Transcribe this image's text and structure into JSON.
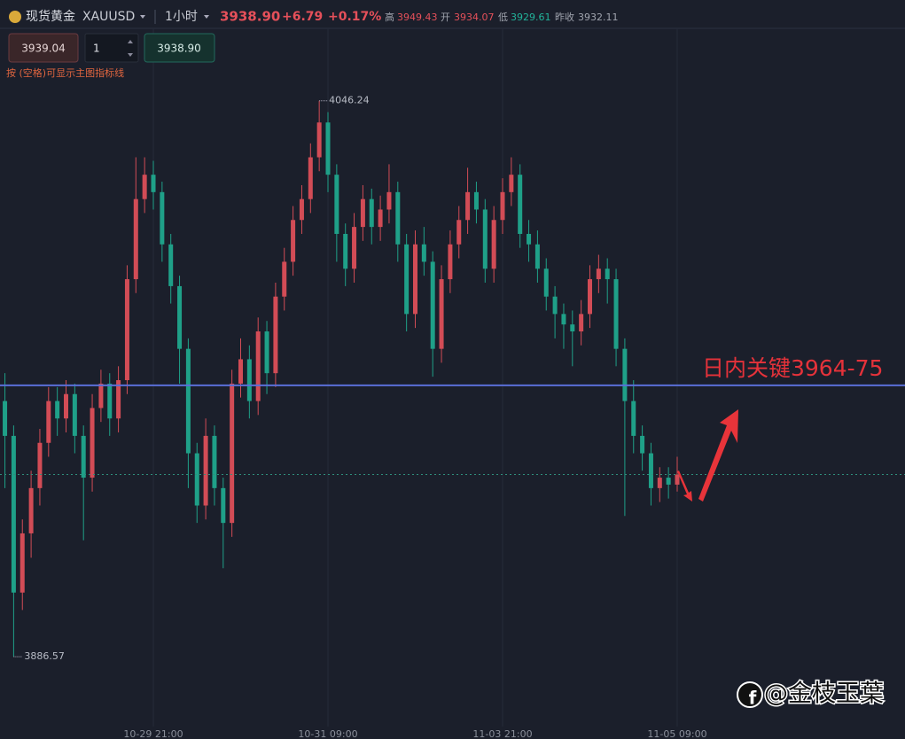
{
  "header": {
    "name": "现货黄金",
    "symbol": "XAUUSD",
    "interval": "1小时",
    "price": "3938.90",
    "change": "+6.79",
    "change_pct": "+0.17%",
    "high_label": "高",
    "high": "3949.43",
    "open_label": "开",
    "open": "3934.07",
    "low_label": "低",
    "low": "3929.61",
    "prev_close_label": "昨收",
    "prev_close": "3932.11"
  },
  "controls": {
    "sell_price": "3939.04",
    "quantity": "1",
    "buy_price": "3938.90",
    "hint": "按 (空格)可显示主图指标线"
  },
  "watermark": "@金枝玉葉",
  "chart_data": {
    "type": "candlestick",
    "up_color": "#d24c56",
    "down_color": "#1fa088",
    "ylim": [
      3866,
      4051
    ],
    "categories": [
      null,
      null,
      null,
      null,
      null,
      null,
      null,
      null,
      null,
      null,
      null,
      null,
      null,
      null,
      null,
      null,
      null,
      "10-29 21:00",
      null,
      null,
      null,
      null,
      null,
      null,
      null,
      null,
      null,
      null,
      null,
      null,
      null,
      null,
      null,
      null,
      null,
      null,
      null,
      "10-31 09:00",
      null,
      null,
      null,
      null,
      null,
      null,
      null,
      null,
      null,
      null,
      null,
      null,
      null,
      null,
      null,
      null,
      null,
      null,
      null,
      "11-03 21:00",
      null,
      null,
      null,
      null,
      null,
      null,
      null,
      null,
      null,
      null,
      null,
      null,
      null,
      null,
      null,
      null,
      null,
      null,
      null,
      "11-05 09:00"
    ],
    "open": [
      3960,
      3950,
      3905,
      3922,
      3935,
      3948,
      3960,
      3955,
      3962,
      3950,
      3938,
      3958,
      3965,
      3955,
      3966,
      3995,
      4018,
      4025,
      4020,
      4005,
      3993,
      3975,
      3945,
      3930,
      3950,
      3935,
      3925,
      3965,
      3972,
      3960,
      3980,
      3968,
      3990,
      4000,
      4012,
      4018,
      4030,
      4040,
      4025,
      4008,
      3998,
      4010,
      4018,
      4010,
      4015,
      4020,
      4005,
      3985,
      4005,
      4000,
      3975,
      3995,
      4005,
      4012,
      4020,
      4015,
      3998,
      4012,
      4020,
      4025,
      4008,
      4005,
      3998,
      3990,
      3985,
      3982,
      3980,
      3985,
      3995,
      3998,
      3995,
      3975,
      3960,
      3950,
      3945,
      3935,
      3938,
      3936
    ],
    "high": [
      3968,
      3953,
      3926,
      3940,
      3952,
      3964,
      3964,
      3966,
      3965,
      3953,
      3962,
      3969,
      3968,
      3970,
      3999,
      4030,
      4030,
      4029,
      4023,
      4008,
      3996,
      3978,
      3948,
      3955,
      3953,
      3938,
      3969,
      3978,
      3976,
      3984,
      3983,
      3994,
      4004,
      4016,
      4022,
      4034,
      4046.24,
      4043,
      4028,
      4011,
      4014,
      4022,
      4021,
      4019,
      4028,
      4023,
      4008,
      4009,
      4010,
      4003,
      3999,
      4009,
      4016,
      4027,
      4023,
      4018,
      4016,
      4024,
      4030,
      4028,
      4012,
      4009,
      4001,
      3993,
      3988,
      3986,
      3989,
      3999,
      4002,
      4001,
      3998,
      3978,
      3966,
      3953,
      3948,
      3941,
      3941,
      3944
    ],
    "low": [
      3935,
      3886.57,
      3900,
      3915,
      3930,
      3944,
      3950,
      3951,
      3945,
      3920,
      3934,
      3954,
      3950,
      3951,
      3962,
      3991,
      4014,
      4015,
      4000,
      3988,
      3965,
      3935,
      3925,
      3926,
      3930,
      3912,
      3921,
      3961,
      3955,
      3956,
      3962,
      3964,
      3986,
      3996,
      4008,
      4014,
      4026,
      4020,
      4000,
      3993,
      3994,
      4006,
      4005,
      4006,
      4011,
      4000,
      3980,
      3981,
      3996,
      3967,
      3971,
      3991,
      4001,
      4008,
      4011,
      3994,
      3994,
      4008,
      4016,
      4004,
      4000,
      3994,
      3986,
      3978,
      3975,
      3970,
      3976,
      3981,
      3991,
      3988,
      3970,
      3927,
      3945,
      3940,
      3930,
      3931,
      3932,
      3934
    ],
    "close": [
      3950,
      3905,
      3922,
      3935,
      3948,
      3960,
      3955,
      3962,
      3950,
      3938,
      3958,
      3965,
      3955,
      3966,
      3995,
      4018,
      4025,
      4020,
      4005,
      3993,
      3975,
      3945,
      3930,
      3950,
      3935,
      3925,
      3965,
      3972,
      3960,
      3980,
      3968,
      3990,
      4000,
      4012,
      4018,
      4030,
      4040,
      4025,
      4008,
      3998,
      4010,
      4018,
      4010,
      4015,
      4020,
      4005,
      3985,
      4005,
      4000,
      3975,
      3995,
      4005,
      4012,
      4020,
      4015,
      3998,
      4012,
      4020,
      4025,
      4008,
      4005,
      3998,
      3990,
      3985,
      3982,
      3980,
      3985,
      3995,
      3998,
      3995,
      3975,
      3960,
      3950,
      3945,
      3935,
      3938,
      3936,
      3938.9
    ],
    "key_line": {
      "value": 3964.5,
      "color": "#5a6fd8",
      "label": "日内关键3964-75",
      "label_color": "#e5323a"
    },
    "last_price_color": "#2f8f7c"
  }
}
